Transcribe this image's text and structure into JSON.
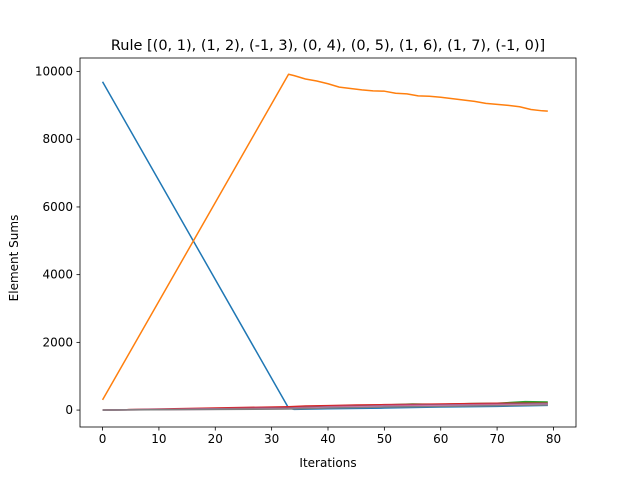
{
  "chart_data": {
    "type": "line",
    "title": "Rule [(0, 1), (1, 2), (-1, 3), (0, 4), (0, 5), (1, 6), (1, 7), (-1, 0)]",
    "xlabel": "Iterations",
    "ylabel": "Element Sums",
    "xlim": [
      -4,
      84
    ],
    "ylim": [
      -500,
      10400
    ],
    "xticks": [
      0,
      10,
      20,
      30,
      40,
      50,
      60,
      70,
      80
    ],
    "yticks": [
      0,
      2000,
      4000,
      6000,
      8000,
      10000
    ],
    "grid": false,
    "legend": "none",
    "series": [
      {
        "color": "#1f77b4",
        "x": [
          0,
          33,
          34,
          40,
          50,
          60,
          70,
          79
        ],
        "y": [
          9700,
          60,
          20,
          40,
          60,
          90,
          110,
          140
        ]
      },
      {
        "color": "#ff7f0e",
        "x": [
          0,
          33,
          34,
          36,
          38,
          40,
          42,
          44,
          46,
          48,
          50,
          52,
          54,
          56,
          58,
          60,
          62,
          64,
          66,
          68,
          70,
          72,
          74,
          76,
          78,
          79
        ],
        "y": [
          300,
          9920,
          9880,
          9780,
          9720,
          9640,
          9540,
          9500,
          9460,
          9430,
          9420,
          9360,
          9340,
          9280,
          9270,
          9240,
          9200,
          9160,
          9120,
          9060,
          9030,
          9000,
          8960,
          8880,
          8840,
          8830
        ]
      },
      {
        "color": "#2ca02c",
        "x": [
          0,
          33,
          36,
          40,
          45,
          50,
          55,
          60,
          65,
          70,
          75,
          79
        ],
        "y": [
          0,
          60,
          110,
          110,
          140,
          150,
          180,
          170,
          190,
          200,
          250,
          240
        ]
      },
      {
        "color": "#d62728",
        "x": [
          0,
          33,
          36,
          40,
          45,
          50,
          55,
          60,
          65,
          70,
          75,
          79
        ],
        "y": [
          0,
          100,
          120,
          130,
          150,
          160,
          170,
          180,
          190,
          200,
          200,
          200
        ]
      },
      {
        "color": "#9467bd",
        "x": [
          0,
          33,
          40,
          50,
          60,
          70,
          79
        ],
        "y": [
          0,
          60,
          100,
          130,
          150,
          170,
          190
        ]
      },
      {
        "color": "#8c564b",
        "x": [
          0,
          33,
          40,
          50,
          60,
          70,
          79
        ],
        "y": [
          0,
          50,
          90,
          120,
          140,
          160,
          180
        ]
      },
      {
        "color": "#e377c2",
        "x": [
          0,
          33,
          40,
          50,
          60,
          70,
          79
        ],
        "y": [
          0,
          40,
          80,
          110,
          130,
          150,
          170
        ]
      },
      {
        "color": "#7f7f7f",
        "x": [
          0,
          33,
          40,
          50,
          60,
          70,
          79
        ],
        "y": [
          0,
          30,
          60,
          90,
          110,
          130,
          150
        ]
      }
    ]
  }
}
